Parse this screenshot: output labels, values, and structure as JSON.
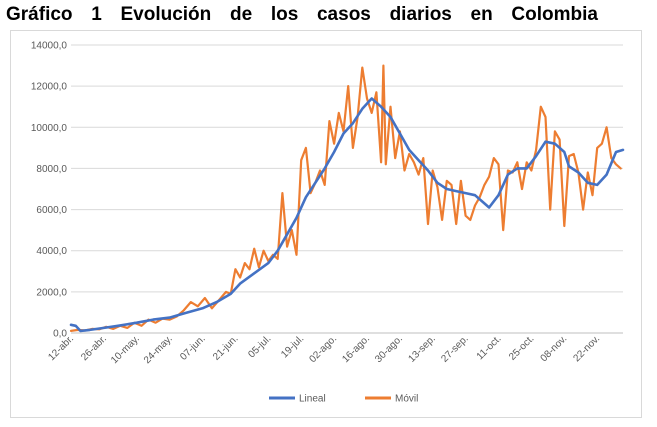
{
  "page_title": "Gráfico 1 Evolución de los casos diarios en Colombia",
  "chart_data": {
    "type": "line",
    "title": "Gráfico 1 Evolución de los casos diarios en Colombia",
    "xlabel": "",
    "ylabel": "",
    "ylim": [
      0,
      14000
    ],
    "y_ticks": [
      "0,0",
      "2000,0",
      "4000,0",
      "6000,0",
      "8000,0",
      "10000,0",
      "12000,0",
      "14000,0"
    ],
    "x_tick_labels": [
      "12-abr.",
      "26-abr.",
      "10-may.",
      "24-may.",
      "07-jun.",
      "21-jun.",
      "05-jul.",
      "19-jul.",
      "02-ago.",
      "16-ago.",
      "30-ago.",
      "13-sep.",
      "27-sep.",
      "11-oct.",
      "25-oct.",
      "08-nov.",
      "22-nov."
    ],
    "x_tick_days": [
      0,
      14,
      28,
      42,
      56,
      70,
      84,
      98,
      112,
      126,
      140,
      154,
      168,
      182,
      196,
      210,
      224
    ],
    "x_domain_days": [
      0,
      235
    ],
    "grid": true,
    "legend_position": "bottom",
    "series": [
      {
        "name": "Lineal",
        "color": "#4472c4",
        "points": [
          [
            0,
            400
          ],
          [
            2,
            350
          ],
          [
            4,
            100
          ],
          [
            8,
            150
          ],
          [
            14,
            250
          ],
          [
            20,
            350
          ],
          [
            28,
            500
          ],
          [
            35,
            650
          ],
          [
            42,
            750
          ],
          [
            48,
            950
          ],
          [
            56,
            1200
          ],
          [
            62,
            1500
          ],
          [
            68,
            1900
          ],
          [
            72,
            2400
          ],
          [
            78,
            2900
          ],
          [
            84,
            3400
          ],
          [
            88,
            4000
          ],
          [
            92,
            4800
          ],
          [
            96,
            5600
          ],
          [
            100,
            6600
          ],
          [
            104,
            7300
          ],
          [
            108,
            8000
          ],
          [
            112,
            8800
          ],
          [
            116,
            9700
          ],
          [
            120,
            10200
          ],
          [
            124,
            10900
          ],
          [
            128,
            11400
          ],
          [
            132,
            11000
          ],
          [
            136,
            10500
          ],
          [
            140,
            9700
          ],
          [
            144,
            8900
          ],
          [
            148,
            8400
          ],
          [
            152,
            7900
          ],
          [
            156,
            7300
          ],
          [
            160,
            7000
          ],
          [
            164,
            6900
          ],
          [
            168,
            6800
          ],
          [
            172,
            6700
          ],
          [
            176,
            6300
          ],
          [
            178,
            6100
          ],
          [
            182,
            6700
          ],
          [
            186,
            7700
          ],
          [
            190,
            8000
          ],
          [
            194,
            8000
          ],
          [
            198,
            8600
          ],
          [
            202,
            9300
          ],
          [
            206,
            9200
          ],
          [
            210,
            8800
          ],
          [
            212,
            8100
          ],
          [
            216,
            7800
          ],
          [
            220,
            7300
          ],
          [
            224,
            7200
          ],
          [
            228,
            7700
          ],
          [
            232,
            8800
          ],
          [
            235,
            8900
          ]
        ]
      },
      {
        "name": "Móvil",
        "color": "#ed7d31",
        "points": [
          [
            0,
            100
          ],
          [
            3,
            150
          ],
          [
            6,
            120
          ],
          [
            9,
            200
          ],
          [
            12,
            180
          ],
          [
            15,
            300
          ],
          [
            18,
            200
          ],
          [
            21,
            350
          ],
          [
            24,
            250
          ],
          [
            27,
            500
          ],
          [
            30,
            350
          ],
          [
            33,
            650
          ],
          [
            36,
            500
          ],
          [
            39,
            700
          ],
          [
            42,
            650
          ],
          [
            45,
            800
          ],
          [
            48,
            1100
          ],
          [
            51,
            1500
          ],
          [
            54,
            1300
          ],
          [
            57,
            1700
          ],
          [
            60,
            1200
          ],
          [
            63,
            1600
          ],
          [
            66,
            2000
          ],
          [
            68,
            1900
          ],
          [
            70,
            3100
          ],
          [
            72,
            2700
          ],
          [
            74,
            3400
          ],
          [
            76,
            3100
          ],
          [
            78,
            4100
          ],
          [
            80,
            3200
          ],
          [
            82,
            4000
          ],
          [
            84,
            3500
          ],
          [
            86,
            3800
          ],
          [
            88,
            3600
          ],
          [
            90,
            6800
          ],
          [
            92,
            4200
          ],
          [
            94,
            5000
          ],
          [
            96,
            3800
          ],
          [
            98,
            8400
          ],
          [
            100,
            9000
          ],
          [
            102,
            6800
          ],
          [
            104,
            7300
          ],
          [
            106,
            7900
          ],
          [
            108,
            7200
          ],
          [
            110,
            10300
          ],
          [
            112,
            9200
          ],
          [
            114,
            10700
          ],
          [
            116,
            9800
          ],
          [
            118,
            12000
          ],
          [
            120,
            9000
          ],
          [
            122,
            10500
          ],
          [
            124,
            12900
          ],
          [
            126,
            11400
          ],
          [
            128,
            10700
          ],
          [
            130,
            11700
          ],
          [
            132,
            8300
          ],
          [
            133,
            13000
          ],
          [
            134,
            8200
          ],
          [
            136,
            11000
          ],
          [
            138,
            8500
          ],
          [
            140,
            9800
          ],
          [
            142,
            7900
          ],
          [
            144,
            8700
          ],
          [
            146,
            8300
          ],
          [
            148,
            7700
          ],
          [
            150,
            8500
          ],
          [
            152,
            5300
          ],
          [
            154,
            7900
          ],
          [
            156,
            7100
          ],
          [
            158,
            5500
          ],
          [
            160,
            7400
          ],
          [
            162,
            7200
          ],
          [
            164,
            5300
          ],
          [
            166,
            7400
          ],
          [
            168,
            5700
          ],
          [
            170,
            5500
          ],
          [
            172,
            6200
          ],
          [
            174,
            6600
          ],
          [
            176,
            7200
          ],
          [
            178,
            7600
          ],
          [
            180,
            8500
          ],
          [
            182,
            8200
          ],
          [
            184,
            5000
          ],
          [
            186,
            7900
          ],
          [
            188,
            7800
          ],
          [
            190,
            8300
          ],
          [
            192,
            7000
          ],
          [
            194,
            8300
          ],
          [
            196,
            7900
          ],
          [
            198,
            8900
          ],
          [
            200,
            11000
          ],
          [
            202,
            10500
          ],
          [
            204,
            6000
          ],
          [
            206,
            9800
          ],
          [
            208,
            9400
          ],
          [
            210,
            5200
          ],
          [
            212,
            8600
          ],
          [
            214,
            8700
          ],
          [
            216,
            7800
          ],
          [
            218,
            6000
          ],
          [
            220,
            7800
          ],
          [
            222,
            6700
          ],
          [
            224,
            9000
          ],
          [
            226,
            9200
          ],
          [
            228,
            10000
          ],
          [
            230,
            8500
          ],
          [
            232,
            8200
          ],
          [
            234,
            8000
          ]
        ]
      }
    ]
  }
}
